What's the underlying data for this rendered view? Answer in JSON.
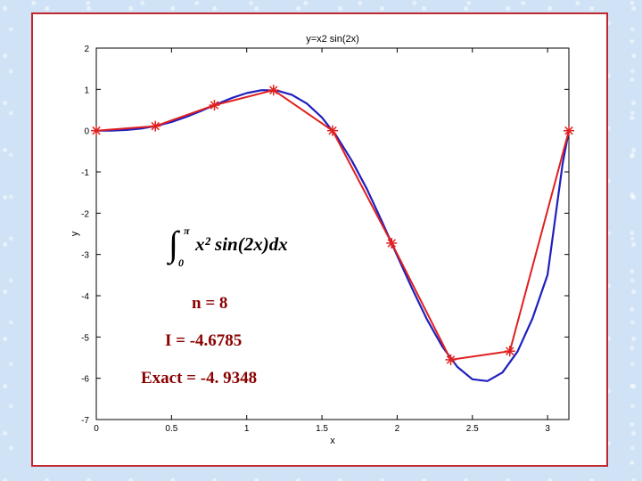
{
  "colors": {
    "curve": "#1f1fbf",
    "approx": "#e02020",
    "marker": "#e02020",
    "frame": "#c0282d",
    "annotation": "#8b0000"
  },
  "annotation": {
    "integral": {
      "sign": "∫",
      "upper": "π",
      "lower": "0",
      "body": "x² sin(2x)dx"
    },
    "n": "n = 8",
    "approx": "I = -4.6785",
    "exact": "Exact = -4. 9348"
  },
  "chart_data": {
    "type": "line",
    "title": "y=x2 sin(2x)",
    "xlabel": "x",
    "ylabel": "y",
    "xlim": [
      0,
      3.14159
    ],
    "ylim": [
      -7,
      2
    ],
    "xticks": [
      0,
      0.5,
      1,
      1.5,
      2,
      2.5,
      3
    ],
    "xtick_labels": [
      "0",
      "0.5",
      "1",
      "1.5",
      "2",
      "2.5",
      "3"
    ],
    "yticks": [
      2,
      1,
      0,
      -1,
      -2,
      -3,
      -4,
      -5,
      -6,
      -7
    ],
    "ytick_labels": [
      "2",
      "1",
      "0",
      "-1",
      "-2",
      "-3",
      "-4",
      "-5",
      "-6",
      "-7"
    ],
    "grid": false,
    "series": [
      {
        "style": "curve",
        "x": [
          0,
          0.1,
          0.2,
          0.3,
          0.4,
          0.5,
          0.6,
          0.7,
          0.8,
          0.9,
          1.0,
          1.1,
          1.2,
          1.3,
          1.4,
          1.5,
          1.6,
          1.7,
          1.8,
          1.9,
          2.0,
          2.1,
          2.2,
          2.3,
          2.4,
          2.5,
          2.6,
          2.7,
          2.8,
          2.9,
          3.0,
          3.1,
          3.1416
        ],
        "values": [
          0,
          0.002,
          0.016,
          0.051,
          0.115,
          0.21,
          0.336,
          0.483,
          0.64,
          0.789,
          0.909,
          0.982,
          0.973,
          0.868,
          0.656,
          0.318,
          -0.149,
          -0.737,
          -1.426,
          -2.208,
          -3.027,
          -3.832,
          -4.584,
          -5.231,
          -5.724,
          -6.025,
          -6.067,
          -5.86,
          -5.353,
          -4.551,
          -3.493,
          -0.798,
          0
        ]
      },
      {
        "style": "polyline-markers",
        "x": [
          0,
          0.3927,
          0.7854,
          1.1781,
          1.5708,
          1.9635,
          2.3562,
          2.7489,
          3.1416
        ],
        "values": [
          0,
          0.109,
          0.617,
          0.981,
          0,
          -2.726,
          -5.552,
          -5.343,
          0
        ]
      }
    ]
  }
}
